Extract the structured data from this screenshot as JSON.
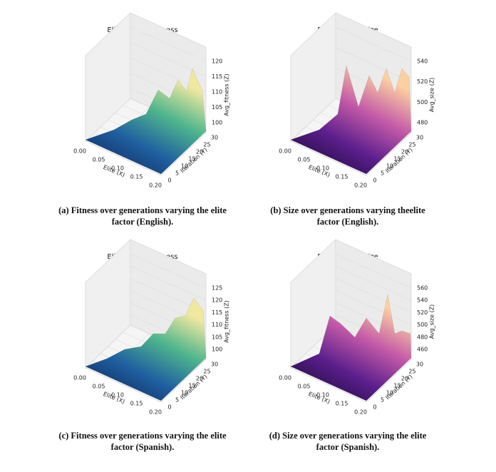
{
  "figures": [
    {
      "title": "Elite vs. Avg_fitness",
      "x_label": "Elite (X)",
      "y_label": "Iteration (Y)",
      "z_label": "Avg_fitness (Z)",
      "x_ticks": [
        "0.00",
        "0.05",
        "0.10",
        "0.15",
        "0.20"
      ],
      "y_ticks": [
        "0",
        "5",
        "10",
        "15",
        "20",
        "25",
        "30"
      ],
      "z_ticks": [
        "100",
        "105",
        "110",
        "115",
        "120"
      ],
      "caption": "(a) Fitness over generations varying the elite factor (English)."
    },
    {
      "title": "Elite vs. Avg_size",
      "x_label": "Elite (X)",
      "y_label": "Iteration (Y)",
      "z_label": "Avg_size (Z)",
      "x_ticks": [
        "0.00",
        "0.05",
        "0.10",
        "0.15",
        "0.20"
      ],
      "y_ticks": [
        "0",
        "5",
        "10",
        "15",
        "20",
        "25",
        "30"
      ],
      "z_ticks": [
        "480",
        "500",
        "520",
        "540"
      ],
      "caption": "(b) Size over generations varying theelite factor (English)."
    },
    {
      "title": "Elite vs. Avg_fitness",
      "x_label": "Elite (X)",
      "y_label": "Iteration (Y)",
      "z_label": "Avg_fitness (Z)",
      "x_ticks": [
        "0.00",
        "0.05",
        "0.10",
        "0.15",
        "0.20"
      ],
      "y_ticks": [
        "0",
        "5",
        "10",
        "15",
        "20",
        "25",
        "30"
      ],
      "z_ticks": [
        "100",
        "105",
        "110",
        "115",
        "120",
        "125"
      ],
      "caption": "(c) Fitness over generations varying the elite factor (Spanish)."
    },
    {
      "title": "Elite vs. Avg_size",
      "x_label": "Elite (X)",
      "y_label": "Iteration (Y)",
      "z_label": "Avg_size (Z)",
      "x_ticks": [
        "0.00",
        "0.05",
        "0.10",
        "0.15",
        "0.20"
      ],
      "y_ticks": [
        "0",
        "5",
        "10",
        "15",
        "20",
        "25",
        "30"
      ],
      "z_ticks": [
        "460",
        "480",
        "500",
        "520",
        "540",
        "560"
      ],
      "caption": "(d) Size over generations varying the elite factor (Spanish)."
    }
  ]
}
